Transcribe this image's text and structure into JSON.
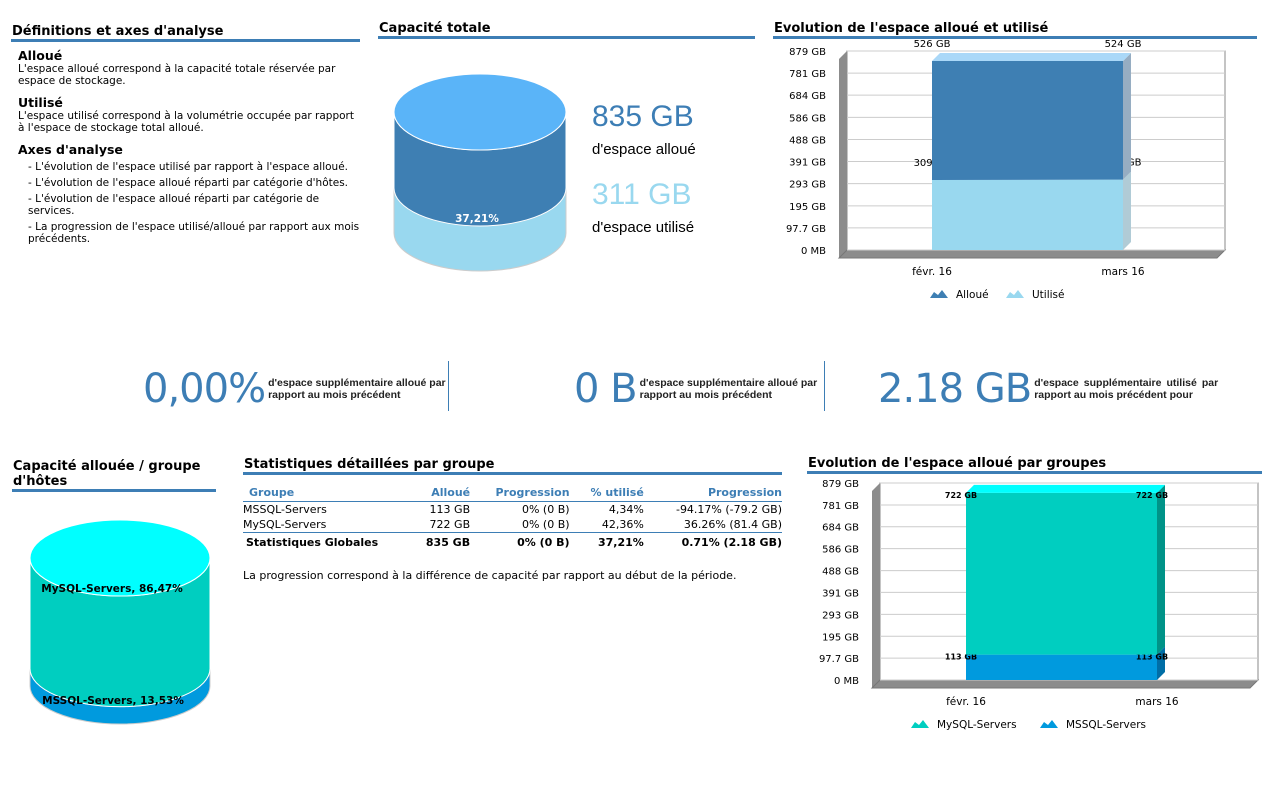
{
  "definitions": {
    "title": "Définitions et axes d'analyse",
    "alloue_title": "Alloué",
    "alloue_text": "L'espace alloué correspond à la capacité totale réservée par espace de stockage.",
    "utilise_title": "Utilisé",
    "utilise_text": "L'espace utilisé correspond à la volumétrie occupée par rapport à l'espace de stockage total alloué.",
    "axes_title": "Axes d'analyse",
    "axes": [
      "- L'évolution de l'espace utilisé par rapport à l'espace alloué.",
      "- L'évolution de l'espace alloué réparti par catégorie d'hôtes.",
      "- L'évolution de l'espace alloué réparti par catégorie de services.",
      "- La progression de l'espace utilisé/alloué par rapport aux mois précédents."
    ]
  },
  "capacity": {
    "title": "Capacité totale",
    "allocated_value": "835 GB",
    "allocated_label": "d'espace alloué",
    "used_value": "311 GB",
    "used_label": "d'espace utilisé",
    "used_percent_label": "37,21%",
    "used_fraction": 0.3721,
    "colors": {
      "allocated_top": "#5ab4f8",
      "allocated": "#3e7fb3",
      "used": "#99d8ef"
    }
  },
  "kpis": [
    {
      "value": "0,00%",
      "text": "d'espace supplémentaire alloué par rapport au mois précédent"
    },
    {
      "value": "0 B",
      "text": "d'espace supplémentaire alloué par rapport au mois précédent"
    },
    {
      "value": "2.18 GB",
      "text": "d'espace supplémentaire utilisé par rapport au mois précédent pour"
    }
  ],
  "host_groups": {
    "title": "Capacité allouée / groupe d'hôtes",
    "slices": [
      {
        "label": "MySQL-Servers, 86,47%",
        "fraction": 0.8647,
        "color": "#00cec0",
        "top": "#00ffff"
      },
      {
        "label": "MSSQL-Servers, 13,53%",
        "fraction": 0.1353,
        "color": "#009ade"
      }
    ]
  },
  "stats": {
    "title": "Statistiques détaillées par groupe",
    "headers": [
      "Groupe",
      "Alloué",
      "Progression",
      "% utilisé",
      "Progression"
    ],
    "rows": [
      [
        "MSSQL-Servers",
        "113 GB",
        "0% (0 B)",
        "4,34%",
        "-94.17% (-79.2 GB)"
      ],
      [
        "MySQL-Servers",
        "722 GB",
        "0% (0 B)",
        "42,36%",
        "36.26% (81.4 GB)"
      ]
    ],
    "total": [
      "Statistiques Globales",
      "835 GB",
      "0% (0 B)",
      "37,21%",
      "0.71% (2.18 GB)"
    ],
    "note": "La progression correspond à la différence de capacité par rapport au début de la période."
  },
  "chart_data": [
    {
      "type": "area",
      "title": "Evolution de l'espace alloué et utilisé",
      "stacked": true,
      "categories": [
        "févr. 16",
        "mars 16"
      ],
      "ylim": [
        0,
        879
      ],
      "yticks": [
        0,
        97.7,
        195,
        293,
        391,
        488,
        586,
        684,
        781,
        879
      ],
      "ytick_labels": [
        "0 MB",
        "97.7 GB",
        "195 GB",
        "293 GB",
        "391 GB",
        "488 GB",
        "586 GB",
        "684 GB",
        "781 GB",
        "879 GB"
      ],
      "grid": true,
      "legend": "bottom",
      "series": [
        {
          "name": "Utilisé",
          "values": [
            309,
            311
          ],
          "labels": [
            "309 GB",
            "311 GB"
          ],
          "color": "#99d8ef",
          "top": "#aadcf5",
          "side": "#b0cbd6"
        },
        {
          "name": "Alloué",
          "values": [
            526,
            524
          ],
          "labels": [
            "526 GB",
            "524 GB"
          ],
          "color": "#3e7fb3",
          "top": "#aad8f8",
          "side": "#96adc2"
        }
      ]
    },
    {
      "type": "area",
      "title": "Evolution de l'espace alloué par groupes",
      "stacked": true,
      "categories": [
        "févr. 16",
        "mars 16"
      ],
      "ylim": [
        0,
        879
      ],
      "yticks": [
        0,
        97.7,
        195,
        293,
        391,
        488,
        586,
        684,
        781,
        879
      ],
      "ytick_labels": [
        "0 MB",
        "97.7 GB",
        "195 GB",
        "293 GB",
        "391 GB",
        "488 GB",
        "586 GB",
        "684 GB",
        "781 GB",
        "879 GB"
      ],
      "grid": true,
      "legend": "bottom",
      "series": [
        {
          "name": "MSSQL-Servers",
          "values": [
            113,
            113
          ],
          "labels": [
            "113 GB",
            "113 GB"
          ],
          "color": "#009ade",
          "top": "#009ade",
          "side": "#006ea6"
        },
        {
          "name": "MySQL-Servers",
          "values": [
            722,
            722
          ],
          "labels": [
            "722 GB",
            "722 GB"
          ],
          "color": "#00cec0",
          "top": "#00ffff",
          "side": "#009388"
        }
      ]
    }
  ]
}
